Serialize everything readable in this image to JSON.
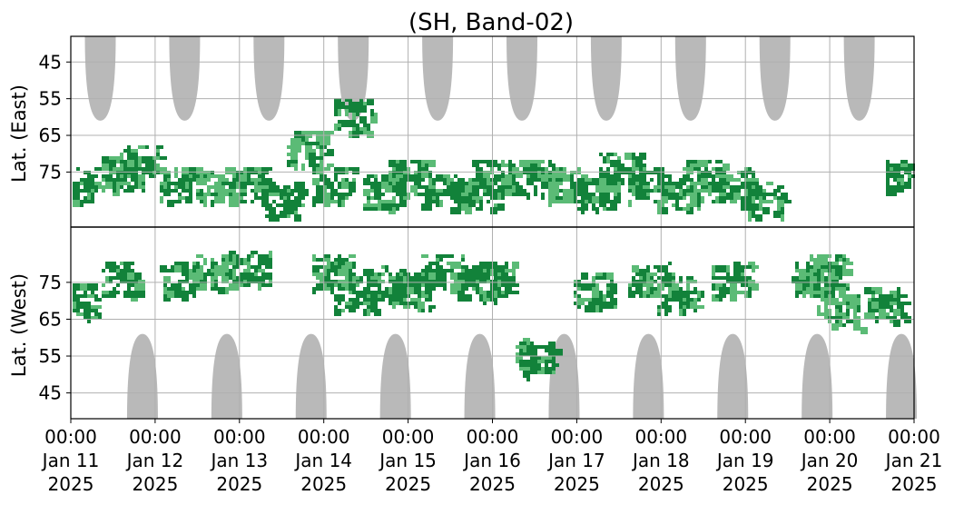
{
  "chart_data": {
    "type": "heatmap",
    "title": "(SH, Band-02)",
    "ylabel_upper": "Lat. (East)",
    "ylabel_lower": "Lat. (West)",
    "x_range": [
      "2025-01-11 00:00",
      "2025-01-21 00:00"
    ],
    "x_ticks": [
      {
        "time": "00:00",
        "date": "Jan 11",
        "year": "2025"
      },
      {
        "time": "00:00",
        "date": "Jan 12",
        "year": "2025"
      },
      {
        "time": "00:00",
        "date": "Jan 13",
        "year": "2025"
      },
      {
        "time": "00:00",
        "date": "Jan 14",
        "year": "2025"
      },
      {
        "time": "00:00",
        "date": "Jan 15",
        "year": "2025"
      },
      {
        "time": "00:00",
        "date": "Jan 16",
        "year": "2025"
      },
      {
        "time": "00:00",
        "date": "Jan 17",
        "year": "2025"
      },
      {
        "time": "00:00",
        "date": "Jan 18",
        "year": "2025"
      },
      {
        "time": "00:00",
        "date": "Jan 19",
        "year": "2025"
      },
      {
        "time": "00:00",
        "date": "Jan 20",
        "year": "2025"
      },
      {
        "time": "00:00",
        "date": "Jan 21",
        "year": "2025"
      }
    ],
    "y_ticks_east": [
      "45",
      "55",
      "65",
      "75"
    ],
    "y_ticks_west": [
      "75",
      "65",
      "55",
      "45"
    ],
    "y_range_latitude": [
      38,
      90
    ],
    "grid": true,
    "colors": {
      "strong": "#12823a",
      "weak": "#5bbb76",
      "shadow": "#b9b9b9",
      "divider": "#000000",
      "grid": "#b0b0b0"
    },
    "shadow_lobes_east_day_offsets": [
      0.35,
      1.35,
      2.35,
      3.35,
      4.35,
      5.35,
      6.35,
      7.35,
      8.35,
      9.35
    ],
    "shadow_lobes_west_day_offsets": [
      0.85,
      1.85,
      2.85,
      3.85,
      4.85,
      5.85,
      6.85,
      7.85,
      8.85,
      9.85
    ],
    "activity_clusters": [
      {
        "day": 0.05,
        "lat_east": 78,
        "lat_west": 70,
        "intensity": "strong"
      },
      {
        "day": 0.6,
        "lat_east": 75,
        "lat_west": 76,
        "intensity": "strong"
      },
      {
        "day": 0.8,
        "lat_east": 72,
        "lat_west": 0,
        "intensity": "strong"
      },
      {
        "day": 1.3,
        "lat_east": 78,
        "lat_west": 76,
        "intensity": "strong"
      },
      {
        "day": 1.7,
        "lat_east": 78,
        "lat_west": 78,
        "intensity": "weak"
      },
      {
        "day": 2.1,
        "lat_east": 78,
        "lat_west": 79,
        "intensity": "strong"
      },
      {
        "day": 2.5,
        "lat_east": 82,
        "lat_west": 0,
        "intensity": "strong"
      },
      {
        "day": 2.8,
        "lat_east": 68,
        "lat_west": 0,
        "intensity": "weak"
      },
      {
        "day": 3.1,
        "lat_east": 78,
        "lat_west": 78,
        "intensity": "strong"
      },
      {
        "day": 3.35,
        "lat_east": 59,
        "lat_west": 72,
        "intensity": "strong"
      },
      {
        "day": 3.7,
        "lat_east": 80,
        "lat_west": 75,
        "intensity": "strong"
      },
      {
        "day": 4.0,
        "lat_east": 76,
        "lat_west": 73,
        "intensity": "strong"
      },
      {
        "day": 4.4,
        "lat_east": 80,
        "lat_west": 78,
        "intensity": "strong"
      },
      {
        "day": 4.8,
        "lat_east": 80,
        "lat_west": 75,
        "intensity": "strong"
      },
      {
        "day": 5.0,
        "lat_east": 76,
        "lat_west": 76,
        "intensity": "strong"
      },
      {
        "day": 5.35,
        "lat_east": 0,
        "lat_west": 0,
        "intensity": "weak"
      },
      {
        "day": 5.5,
        "lat_east": 76,
        "lat_west": 55,
        "intensity": "strong"
      },
      {
        "day": 5.8,
        "lat_east": 78,
        "lat_west": 0,
        "intensity": "weak"
      },
      {
        "day": 6.2,
        "lat_east": 80,
        "lat_west": 73,
        "intensity": "strong"
      },
      {
        "day": 6.5,
        "lat_east": 74,
        "lat_west": 0,
        "intensity": "strong"
      },
      {
        "day": 6.85,
        "lat_east": 78,
        "lat_west": 76,
        "intensity": "strong"
      },
      {
        "day": 7.2,
        "lat_east": 80,
        "lat_west": 72,
        "intensity": "strong"
      },
      {
        "day": 7.5,
        "lat_east": 76,
        "lat_west": 0,
        "intensity": "strong"
      },
      {
        "day": 7.85,
        "lat_east": 78,
        "lat_west": 76,
        "intensity": "strong"
      },
      {
        "day": 8.2,
        "lat_east": 82,
        "lat_west": 0,
        "intensity": "strong"
      },
      {
        "day": 8.8,
        "lat_east": 0,
        "lat_west": 76,
        "intensity": "strong"
      },
      {
        "day": 9.0,
        "lat_east": 0,
        "lat_west": 78,
        "intensity": "weak"
      },
      {
        "day": 9.1,
        "lat_east": 0,
        "lat_west": 68,
        "intensity": "weak"
      },
      {
        "day": 9.65,
        "lat_east": 0,
        "lat_west": 69,
        "intensity": "strong"
      },
      {
        "day": 9.9,
        "lat_east": 76,
        "lat_west": 0,
        "intensity": "strong"
      }
    ]
  }
}
